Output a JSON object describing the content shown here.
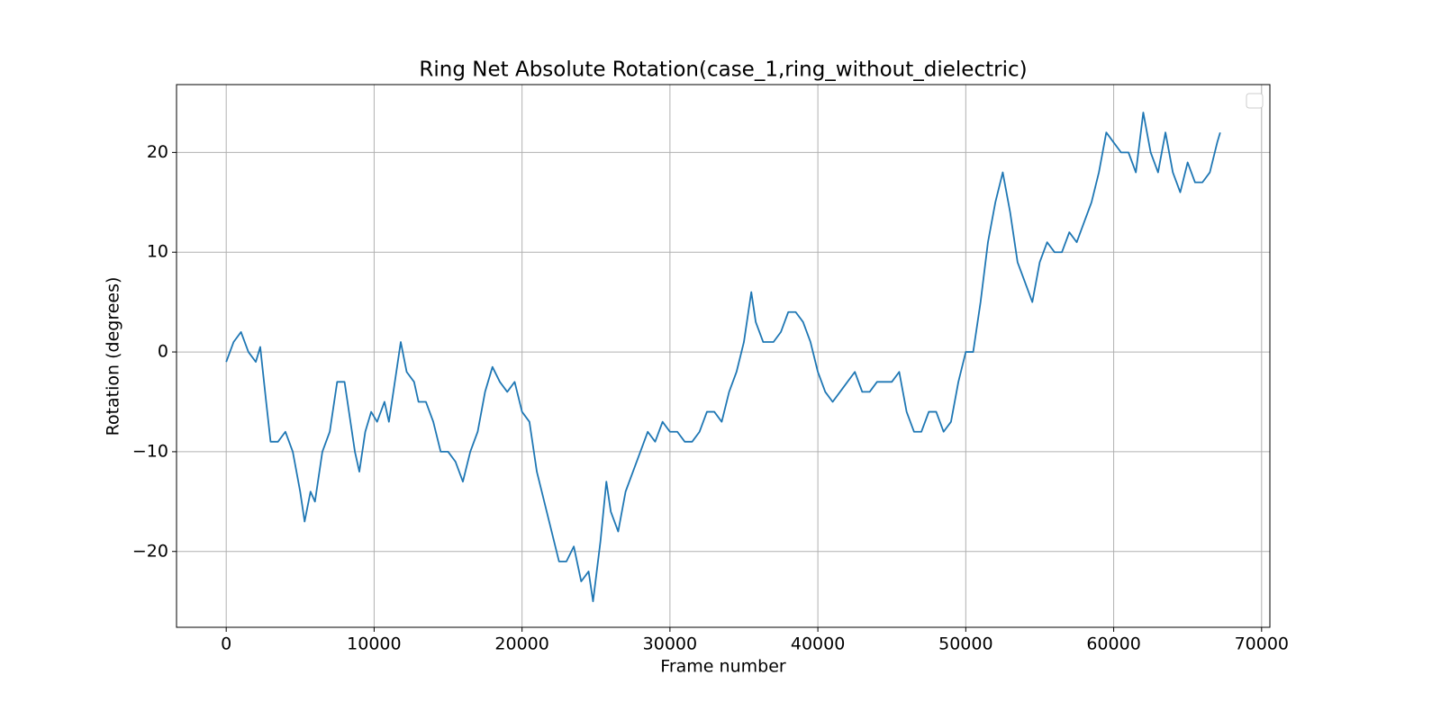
{
  "chart_data": {
    "type": "line",
    "title": "Ring Net Absolute Rotation(case_1,ring_without_dielectric)",
    "x_label": "Frame number",
    "y_label": "Rotation (degrees)",
    "color": "#1f77b4",
    "grid": true,
    "x": [
      0,
      500,
      1000,
      1500,
      2000,
      2300,
      2700,
      3000,
      3500,
      4000,
      4500,
      5000,
      5300,
      5700,
      6000,
      6500,
      7000,
      7500,
      8000,
      8300,
      8700,
      9000,
      9400,
      9800,
      10200,
      10700,
      11000,
      11500,
      11800,
      12200,
      12700,
      13000,
      13500,
      14000,
      14500,
      15000,
      15500,
      16000,
      16500,
      17000,
      17500,
      18000,
      18500,
      19000,
      19500,
      20000,
      20500,
      21000,
      21500,
      22000,
      22500,
      23000,
      23500,
      24000,
      24500,
      24800,
      25300,
      25700,
      26000,
      26500,
      27000,
      27500,
      28000,
      28500,
      29000,
      29500,
      30000,
      30500,
      31000,
      31500,
      32000,
      32500,
      33000,
      33500,
      34000,
      34500,
      35000,
      35500,
      35800,
      36300,
      37000,
      37500,
      38000,
      38500,
      39000,
      39500,
      40000,
      40500,
      41000,
      41500,
      42000,
      42500,
      43000,
      43500,
      44000,
      44500,
      45000,
      45500,
      46000,
      46500,
      47000,
      47500,
      48000,
      48500,
      49000,
      49500,
      50000,
      50500,
      51000,
      51500,
      52000,
      52500,
      53000,
      53500,
      54000,
      54500,
      55000,
      55500,
      56000,
      56500,
      57000,
      57500,
      58000,
      58500,
      59000,
      59500,
      60000,
      60500,
      61000,
      61500,
      62000,
      62500,
      63000,
      63500,
      64000,
      64500,
      65000,
      65500,
      66000,
      66500,
      67000,
      67200
    ],
    "values": [
      -1,
      1,
      2,
      0,
      -1,
      0.5,
      -5,
      -9,
      -9,
      -8,
      -10,
      -14,
      -17,
      -14,
      -15,
      -10,
      -8,
      -3,
      -3,
      -6,
      -10,
      -12,
      -8,
      -6,
      -7,
      -5,
      -7,
      -2,
      1,
      -2,
      -3,
      -5,
      -5,
      -7,
      -10,
      -10,
      -11,
      -13,
      -10,
      -8,
      -4,
      -1.5,
      -3,
      -4,
      -3,
      -6,
      -7,
      -12,
      -15,
      -18,
      -21,
      -21,
      -19.5,
      -23,
      -22,
      -25,
      -19,
      -13,
      -16,
      -18,
      -14,
      -12,
      -10,
      -8,
      -9,
      -7,
      -8,
      -8,
      -9,
      -9,
      -8,
      -6,
      -6,
      -7,
      -4,
      -2,
      1,
      6,
      3,
      1,
      1,
      2,
      4,
      4,
      3,
      1,
      -2,
      -4,
      -5,
      -4,
      -3,
      -2,
      -4,
      -4,
      -3,
      -3,
      -3,
      -2,
      -6,
      -8,
      -8,
      -6,
      -6,
      -8,
      -7,
      -3,
      0,
      0,
      5,
      11,
      15,
      18,
      14,
      9,
      7,
      5,
      9,
      11,
      10,
      10,
      12,
      11,
      13,
      15,
      18,
      22,
      21,
      20,
      20,
      18,
      24,
      20,
      18,
      22,
      18,
      16,
      19,
      17,
      17,
      18,
      21,
      22
    ],
    "xlim": [
      -3360,
      70560
    ],
    "ylim": [
      -27.6,
      26.8
    ],
    "xticks": [
      0,
      10000,
      20000,
      30000,
      40000,
      50000,
      60000,
      70000
    ],
    "yticks": [
      {
        "value": -20,
        "label": "−20"
      },
      {
        "value": -10,
        "label": "−10"
      },
      0,
      10,
      20
    ]
  }
}
